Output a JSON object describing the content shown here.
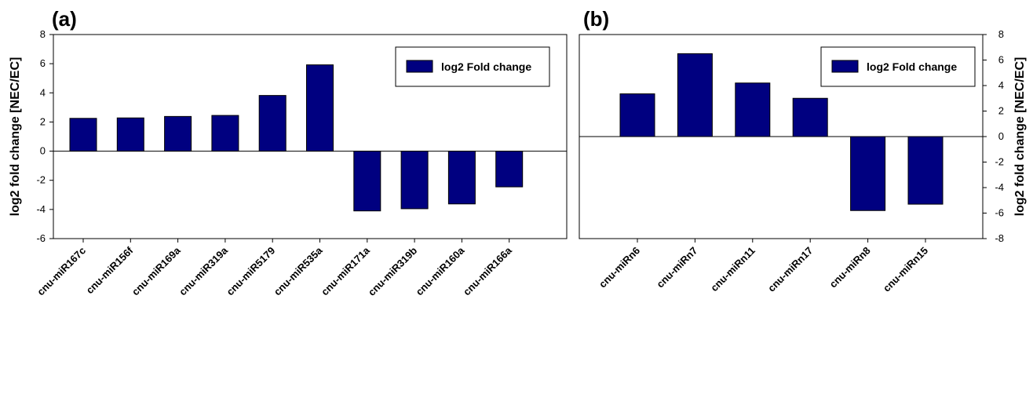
{
  "chart_data": [
    {
      "type": "bar",
      "panel_label": "(a)",
      "categories": [
        "cnu-miR167c",
        "cnu-miR156f",
        "cnu-miR169a",
        "cnu-miR319a",
        "cnu-miR5179",
        "cnu-miR535a",
        "cnu-miR171a",
        "cnu-miR319b",
        "cnu-miR160a",
        "cnu-miR166a"
      ],
      "series": [
        {
          "name": "log2 Fold change",
          "values": [
            2.25,
            2.28,
            2.38,
            2.45,
            3.82,
            5.92,
            -4.1,
            -3.95,
            -3.62,
            -2.45
          ]
        }
      ],
      "ylabel": "log2 fold change [NEC/EC]",
      "ylim": [
        -6,
        8
      ],
      "yticks": [
        -6,
        -4,
        -2,
        0,
        2,
        4,
        6,
        8
      ],
      "y_axis_side": "left",
      "legend_position": "top-right",
      "bar_color": "#000080",
      "grid": false
    },
    {
      "type": "bar",
      "panel_label": "(b)",
      "categories": [
        "cnu-miRn6",
        "cnu-miRn7",
        "cnu-miRn11",
        "cnu-miRn17",
        "cnu-miRn8",
        "cnu-miRn15"
      ],
      "series": [
        {
          "name": "log2 Fold change",
          "values": [
            3.35,
            6.5,
            4.2,
            3.0,
            -5.8,
            -5.3
          ]
        }
      ],
      "ylabel": "log2 fold change [NEC/EC]",
      "ylim": [
        -8,
        8
      ],
      "yticks": [
        -8,
        -6,
        -4,
        -2,
        0,
        2,
        4,
        6,
        8
      ],
      "y_axis_side": "right",
      "legend_position": "top-right",
      "bar_color": "#000080",
      "grid": false
    }
  ]
}
